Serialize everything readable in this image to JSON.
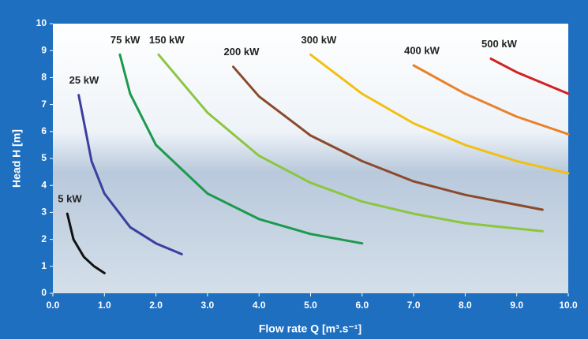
{
  "chart_data": {
    "type": "line",
    "xlabel": "Flow rate Q [m³.s⁻¹]",
    "ylabel": "Head H [m]",
    "xlim": [
      0,
      10
    ],
    "ylim": [
      0,
      10
    ],
    "xticks": [
      {
        "value": 0,
        "label": "0.0"
      },
      {
        "value": 1,
        "label": "1.0"
      },
      {
        "value": 2,
        "label": "2.0"
      },
      {
        "value": 3,
        "label": "3.0"
      },
      {
        "value": 4,
        "label": "4.0"
      },
      {
        "value": 5,
        "label": "5.0"
      },
      {
        "value": 6,
        "label": "6.0"
      },
      {
        "value": 7,
        "label": "7.0"
      },
      {
        "value": 8,
        "label": "8.0"
      },
      {
        "value": 9,
        "label": "9.0"
      },
      {
        "value": 10,
        "label": "10.0"
      }
    ],
    "yticks": [
      0,
      1,
      2,
      3,
      4,
      5,
      6,
      7,
      8,
      9,
      10
    ],
    "grid": false,
    "series": [
      {
        "name": "5 kW",
        "color": "#111111",
        "x": [
          0.28,
          0.4,
          0.6,
          0.8,
          1.0
        ],
        "values": [
          2.95,
          2.0,
          1.35,
          1.0,
          0.75
        ]
      },
      {
        "name": "25 kW",
        "color": "#3b3f9e",
        "x": [
          0.5,
          0.75,
          1.0,
          1.5,
          2.0,
          2.5
        ],
        "values": [
          7.35,
          4.9,
          3.7,
          2.45,
          1.85,
          1.45
        ]
      },
      {
        "name": "75 kW",
        "color": "#1c9a4c",
        "x": [
          1.3,
          1.5,
          2,
          3,
          4,
          5,
          6
        ],
        "values": [
          8.85,
          7.4,
          5.5,
          3.7,
          2.75,
          2.2,
          1.85
        ]
      },
      {
        "name": "150 kW",
        "color": "#8cc63f",
        "x": [
          2.05,
          3,
          4,
          5,
          6,
          7,
          8,
          9.5
        ],
        "values": [
          8.85,
          6.7,
          5.1,
          4.1,
          3.4,
          2.95,
          2.6,
          2.3
        ]
      },
      {
        "name": "200 kW",
        "color": "#8b4a2b",
        "x": [
          3.5,
          4,
          5,
          6,
          7,
          8,
          9.5
        ],
        "values": [
          8.4,
          7.3,
          5.85,
          4.9,
          4.15,
          3.65,
          3.1
        ]
      },
      {
        "name": "300 kW",
        "color": "#f2c010",
        "x": [
          5,
          6,
          7,
          8,
          9,
          10
        ],
        "values": [
          8.85,
          7.4,
          6.3,
          5.5,
          4.9,
          4.45
        ]
      },
      {
        "name": "400 kW",
        "color": "#e8822a",
        "x": [
          7,
          8,
          9,
          10
        ],
        "values": [
          8.45,
          7.4,
          6.55,
          5.9
        ]
      },
      {
        "name": "500 kW",
        "color": "#d42020",
        "x": [
          8.5,
          9,
          10
        ],
        "values": [
          8.7,
          8.2,
          7.4
        ]
      }
    ]
  }
}
